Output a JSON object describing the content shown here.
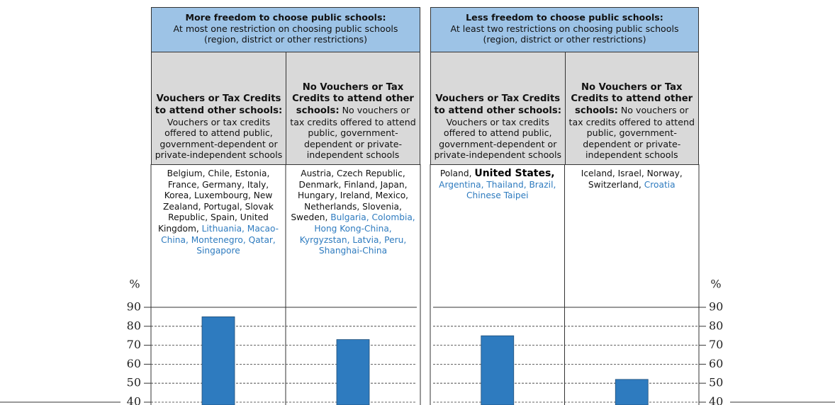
{
  "panels": [
    {
      "title": "More freedom to choose public schools:",
      "text": "At most one restriction on choosing public schools (region, district or other restrictions)",
      "columns": [
        {
          "title": "Vouchers or Tax Credits to attend other schools:",
          "text": "Vouchers or tax credits offered to attend public, government-dependent or private-independent schools",
          "countries": [
            {
              "text": "Belgium, Chile, Estonia, France, Germany, Italy, Korea, Luxembourg, New Zealand, Portugal, Slovak Republic, Spain, United Kingdom,",
              "style": "oecd"
            },
            {
              "text": "Lithuania, Macao-China, Montenegro, Qatar, Singapore",
              "style": "partner"
            }
          ]
        },
        {
          "title": "No Vouchers or Tax Credits to attend other schools:",
          "text": "No vouchers or tax credits offered to attend public, government-dependent or private-independent schools",
          "countries": [
            {
              "text": "Austria, Czech Republic, Denmark, Finland, Japan, Hungary, Ireland, Mexico, Netherlands, Slovenia, Sweden,",
              "style": "oecd"
            },
            {
              "text": "Bulgaria, Colombia, Hong Kong-China, Kyrgyzstan, Latvia, Peru, Shanghai-China",
              "style": "partner"
            }
          ]
        }
      ]
    },
    {
      "title": "Less freedom to choose public schools:",
      "text": "At least two restrictions on choosing public schools (region, district or other restrictions)",
      "columns": [
        {
          "title": "Vouchers or Tax Credits to attend other schools:",
          "text": "Vouchers or tax credits offered to attend public, government-dependent or private-independent schools",
          "countries": [
            {
              "text": "Poland,",
              "style": "oecd"
            },
            {
              "text": "United States,",
              "style": "highlight"
            },
            {
              "text": "Argentina, Thailand, Brazil, Chinese Taipei",
              "style": "partner"
            }
          ]
        },
        {
          "title": "No Vouchers or Tax Credits to attend other schools:",
          "text": "No vouchers or tax credits offered to attend public, government-dependent or private-independent schools",
          "countries": [
            {
              "text": "Iceland, Israel, Norway, Switzerland,",
              "style": "oecd"
            },
            {
              "text": "Croatia",
              "style": "partner"
            }
          ]
        }
      ]
    }
  ],
  "chart_data": {
    "type": "bar",
    "values": [
      85,
      73,
      75,
      52
    ],
    "color": "#2e7bbf",
    "y_label": "%",
    "ylim": [
      40,
      90
    ],
    "yticks": [
      40,
      50,
      60,
      70,
      80,
      90
    ],
    "grid": true
  }
}
